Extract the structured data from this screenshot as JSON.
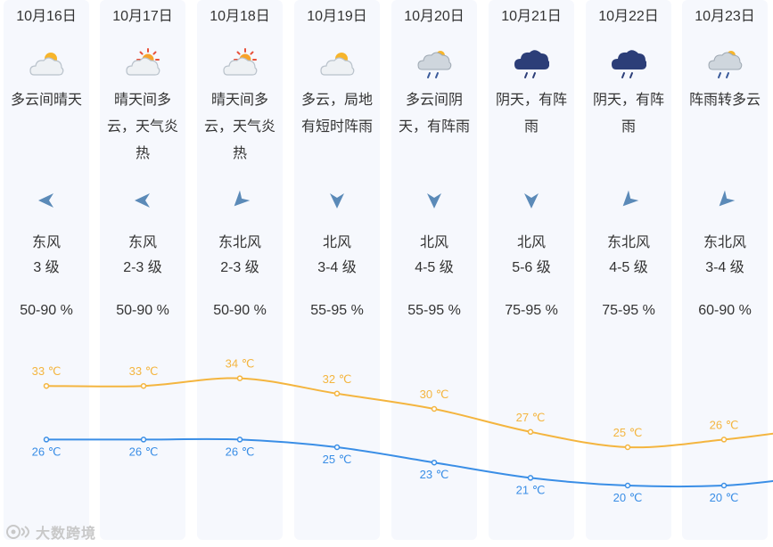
{
  "days": [
    {
      "date": "10月16日",
      "icon": "partly-cloudy-icon",
      "desc": "多云间晴天",
      "wind_dir": "东风",
      "wind_icon": "arrow-west-icon",
      "wind_level": "3 级",
      "humidity": "50-90 %"
    },
    {
      "date": "10月17日",
      "icon": "sun-cloud-icon",
      "desc": "晴天间多云，天气炎热",
      "wind_dir": "东风",
      "wind_icon": "arrow-west-icon",
      "wind_level": "2-3 级",
      "humidity": "50-90 %"
    },
    {
      "date": "10月18日",
      "icon": "sun-cloud-icon",
      "desc": "晴天间多云，天气炎热",
      "wind_dir": "东北风",
      "wind_icon": "arrow-southwest-icon",
      "wind_level": "2-3 级",
      "humidity": "50-90 %"
    },
    {
      "date": "10月19日",
      "icon": "partly-cloudy-icon",
      "desc": "多云，局地有短时阵雨",
      "wind_dir": "北风",
      "wind_icon": "arrow-south-icon",
      "wind_level": "3-4 级",
      "humidity": "55-95 %"
    },
    {
      "date": "10月20日",
      "icon": "cloud-rain-icon",
      "desc": "多云间阴天，有阵雨",
      "wind_dir": "北风",
      "wind_icon": "arrow-south-icon",
      "wind_level": "4-5 级",
      "humidity": "55-95 %"
    },
    {
      "date": "10月21日",
      "icon": "dark-rain-cloud-icon",
      "desc": "阴天，有阵雨",
      "wind_dir": "北风",
      "wind_icon": "arrow-south-icon",
      "wind_level": "5-6 级",
      "humidity": "75-95 %"
    },
    {
      "date": "10月22日",
      "icon": "dark-rain-cloud-icon",
      "desc": "阴天，有阵雨",
      "wind_dir": "东北风",
      "wind_icon": "arrow-southwest-icon",
      "wind_level": "4-5 级",
      "humidity": "75-95 %"
    },
    {
      "date": "10月23日",
      "icon": "cloud-rain-icon",
      "desc": "阵雨转多云",
      "wind_dir": "东北风",
      "wind_icon": "arrow-southwest-icon",
      "wind_level": "3-4 级",
      "humidity": "60-90 %"
    }
  ],
  "chart_data": {
    "type": "line",
    "categories": [
      "10月16日",
      "10月17日",
      "10月18日",
      "10月19日",
      "10月20日",
      "10月21日",
      "10月22日",
      "10月23日"
    ],
    "series": [
      {
        "values": [
          33,
          33,
          34,
          32,
          30,
          27,
          25,
          26
        ],
        "labels": [
          "33 ℃",
          "33 ℃",
          "34 ℃",
          "32 ℃",
          "30 ℃",
          "27 ℃",
          "25 ℃",
          "26 ℃"
        ],
        "color": "#f4b53f"
      },
      {
        "values": [
          26,
          26,
          26,
          25,
          23,
          21,
          20,
          20
        ],
        "labels": [
          "26 ℃",
          "26 ℃",
          "26 ℃",
          "25 ℃",
          "23 ℃",
          "21 ℃",
          "20 ℃",
          "20 ℃"
        ],
        "color": "#3a8ee6"
      }
    ]
  },
  "colors": {
    "column_bg": "#f6f8fd",
    "arrow": "#5b8ab8",
    "high": "#f4b53f",
    "low": "#3a8ee6"
  },
  "watermark": {
    "text": "大数跨境",
    "icon": "watermark-logo-icon"
  }
}
